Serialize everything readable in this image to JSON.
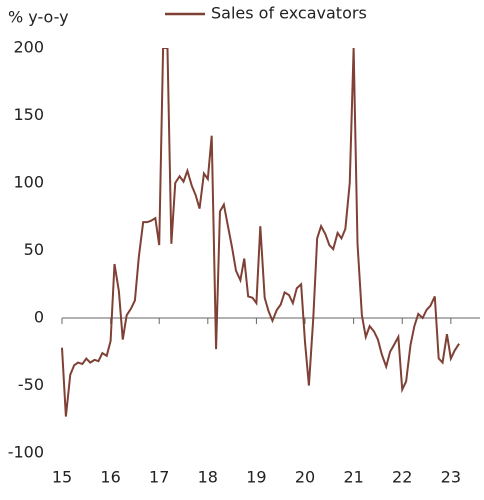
{
  "chart_data": {
    "type": "line",
    "y_label": "% y-o-y",
    "x": [
      15,
      15.08,
      15.17,
      15.25,
      15.33,
      15.42,
      15.5,
      15.58,
      15.67,
      15.75,
      15.83,
      15.92,
      16,
      16.08,
      16.17,
      16.25,
      16.33,
      16.42,
      16.5,
      16.58,
      16.67,
      16.75,
      16.83,
      16.92,
      17,
      17.08,
      17.17,
      17.25,
      17.33,
      17.42,
      17.5,
      17.58,
      17.67,
      17.75,
      17.83,
      17.92,
      18,
      18.08,
      18.17,
      18.25,
      18.33,
      18.42,
      18.5,
      18.58,
      18.67,
      18.75,
      18.83,
      18.92,
      19,
      19.08,
      19.17,
      19.25,
      19.33,
      19.42,
      19.5,
      19.58,
      19.67,
      19.75,
      19.83,
      19.92,
      20,
      20.08,
      20.17,
      20.25,
      20.33,
      20.42,
      20.5,
      20.58,
      20.67,
      20.75,
      20.83,
      20.92,
      21,
      21.08,
      21.17,
      21.25,
      21.33,
      21.42,
      21.5,
      21.58,
      21.67,
      21.75,
      21.83,
      21.92,
      22,
      22.08,
      22.17,
      22.25,
      22.33,
      22.42,
      22.5,
      22.58,
      22.67,
      22.75,
      22.83,
      22.92,
      23,
      23.08,
      23.17
    ],
    "series": [
      {
        "name": "Sales of excavators",
        "color": "#7f4035",
        "values": [
          -22,
          -73,
          -42,
          -35,
          -33,
          -34,
          -30,
          -33,
          -31,
          -32,
          -26,
          -28,
          -17,
          40,
          20,
          -16,
          2,
          7,
          13,
          45,
          71,
          71,
          72,
          74,
          54,
          200,
          200,
          55,
          100,
          105,
          101,
          109,
          98,
          91,
          81,
          107,
          103,
          135,
          -23,
          79,
          84,
          67,
          52,
          35,
          28,
          44,
          16,
          15,
          11,
          68,
          15,
          5,
          -2,
          6,
          10,
          19,
          17,
          11,
          22,
          25,
          -18,
          -50,
          0,
          59,
          68,
          62,
          54,
          51,
          63,
          59,
          66,
          100,
          200,
          55,
          2,
          -14,
          -6,
          -10,
          -16,
          -27,
          -36,
          -25,
          -20,
          -14,
          -53,
          -47,
          -20,
          -6,
          3,
          0,
          6,
          9,
          16,
          -30,
          -33,
          -12,
          -30,
          -24,
          -19
        ]
      }
    ],
    "xlim": [
      15,
      23.6
    ],
    "xticks": [
      15,
      16,
      17,
      18,
      19,
      20,
      21,
      22,
      23
    ],
    "ylim": [
      -100,
      200
    ],
    "yticks": [
      -100,
      -50,
      0,
      50,
      100,
      150,
      200
    ]
  }
}
